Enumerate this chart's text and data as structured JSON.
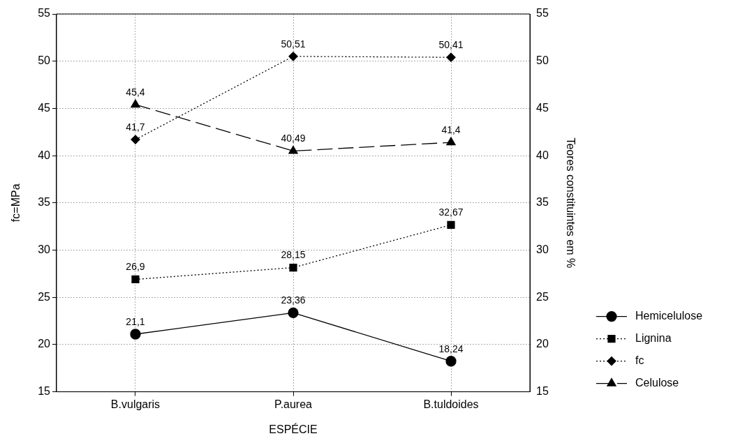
{
  "chart_data": {
    "type": "line",
    "xlabel": "ESPÉCIE",
    "ylabel": "fc=MPa",
    "y2label": "Teores constituintes em %",
    "categories": [
      "B.vulgaris",
      "P.aurea",
      "B.tuldoides"
    ],
    "series": [
      {
        "name": "Hemicelulose",
        "color": "#000000",
        "values": [
          21.1,
          23.36,
          18.24
        ],
        "value_labels": [
          "21,1",
          "23,36",
          "18,24"
        ],
        "marker": "circle",
        "line_style": "solid"
      },
      {
        "name": "Lignina",
        "color": "#000000",
        "values": [
          26.9,
          28.15,
          32.67
        ],
        "value_labels": [
          "26,9",
          "28,15",
          "32,67"
        ],
        "marker": "square",
        "line_style": "dotted"
      },
      {
        "name": "fc",
        "color": "#000000",
        "values": [
          41.7,
          50.51,
          50.41
        ],
        "value_labels": [
          "41,7",
          "50,51",
          "50,41"
        ],
        "marker": "diamond",
        "line_style": "dotted"
      },
      {
        "name": "Celulose",
        "color": "#000000",
        "values": [
          45.4,
          40.49,
          41.4
        ],
        "value_labels": [
          "45,4",
          "40,49",
          "41,4"
        ],
        "marker": "triangle",
        "line_style": "dashed"
      }
    ],
    "ylim": [
      15,
      55
    ],
    "yticks": [
      15,
      20,
      25,
      30,
      35,
      40,
      45,
      50,
      55
    ],
    "y2lim": [
      15,
      55
    ],
    "y2ticks": [
      15,
      20,
      25,
      30,
      35,
      40,
      45,
      50,
      55
    ],
    "grid": true,
    "legend": "right"
  }
}
